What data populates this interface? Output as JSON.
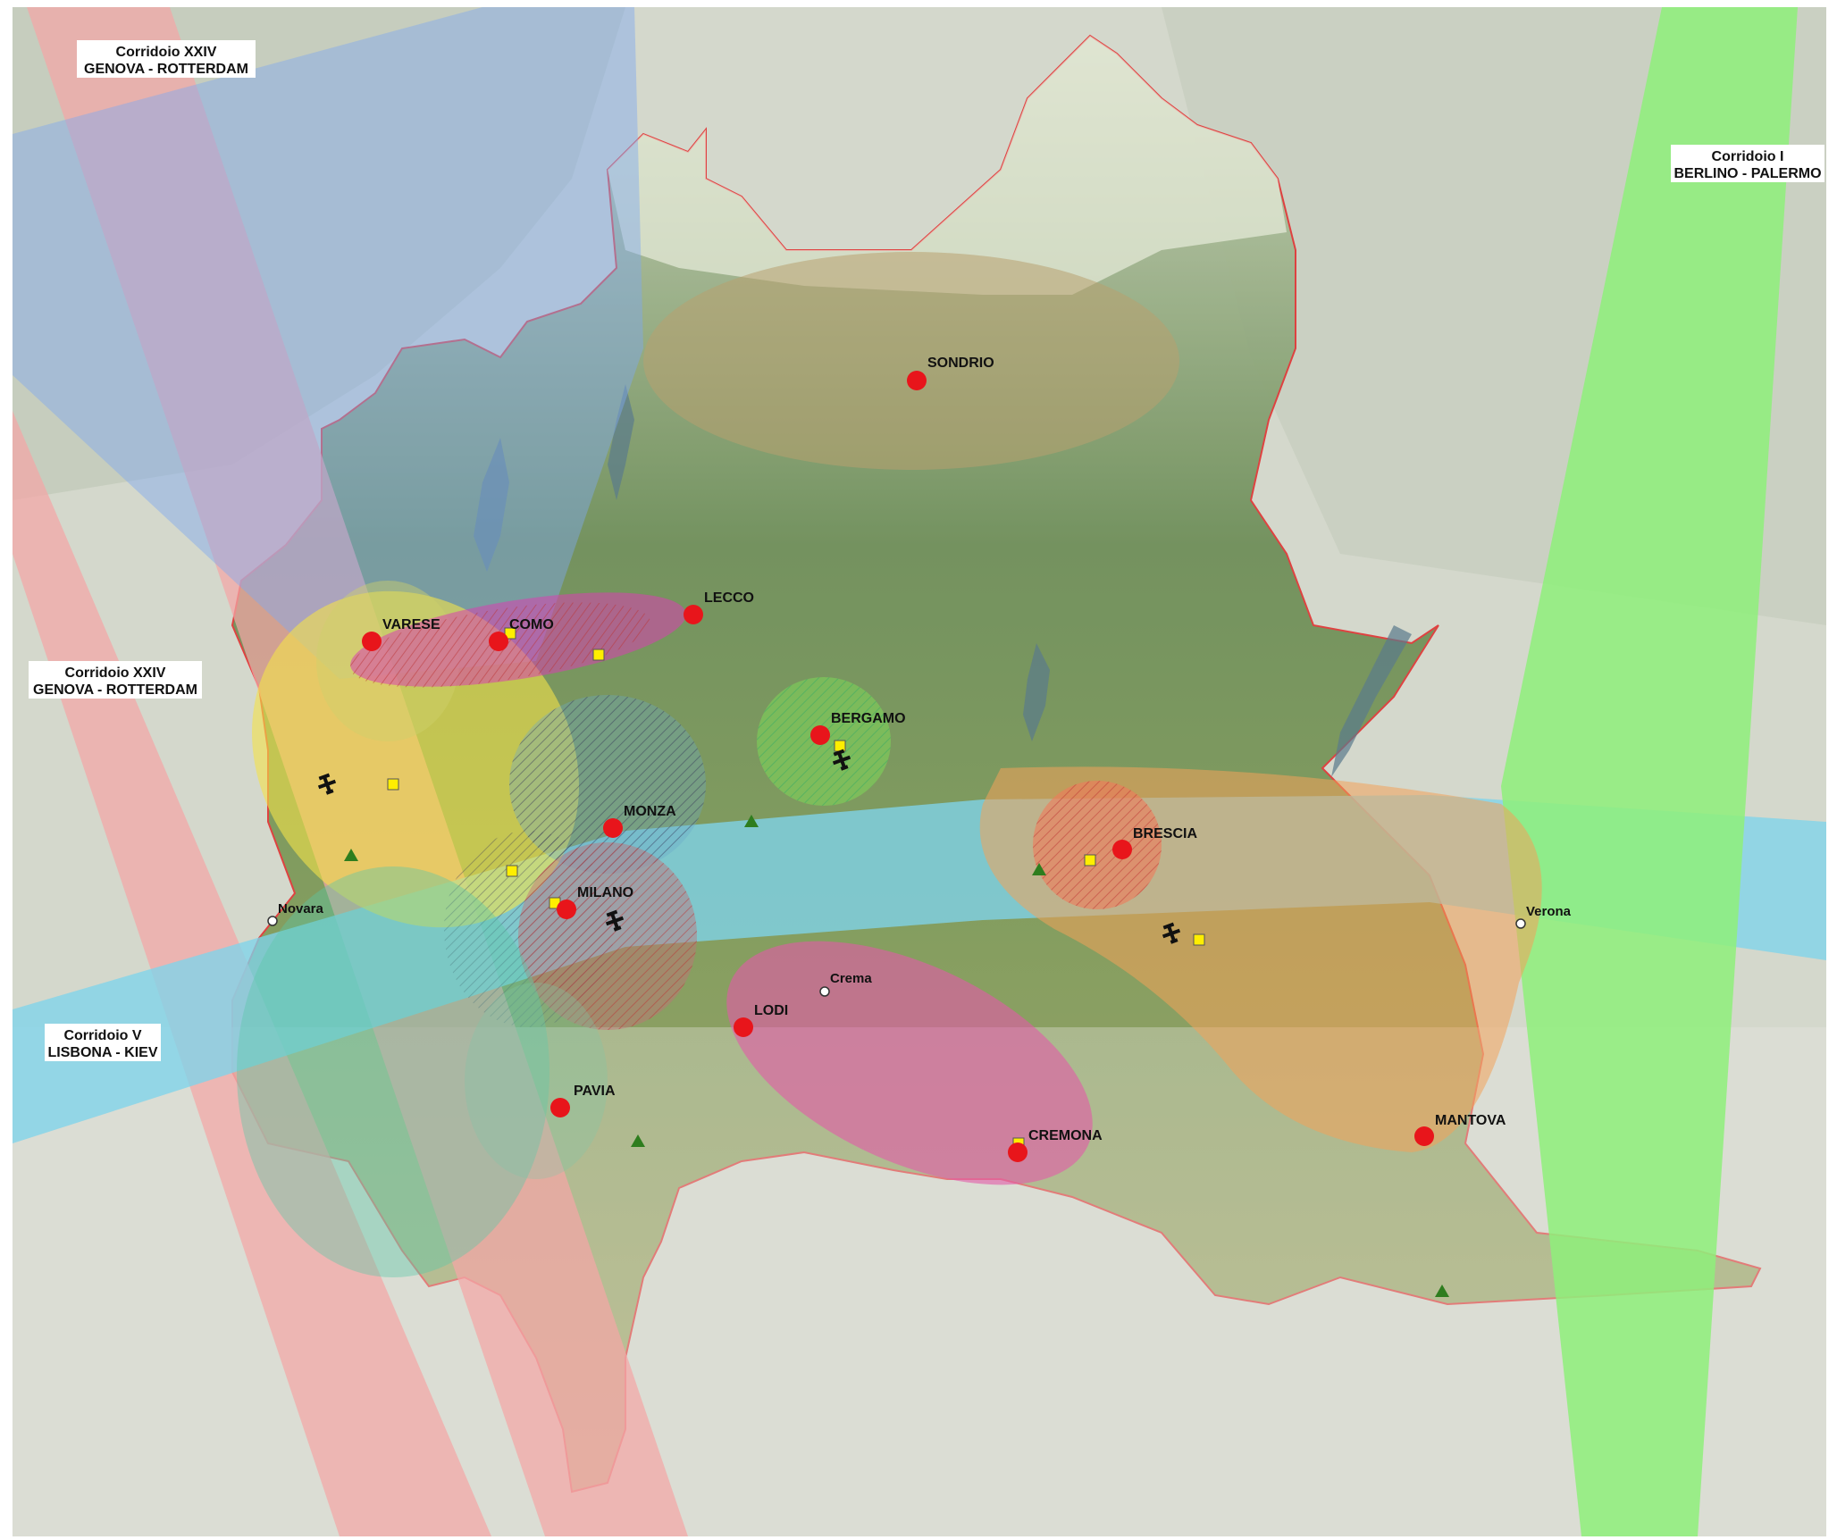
{
  "corridors": [
    {
      "line1": "Corridoio XXIV",
      "line2": "GENOVA - ROTTERDAM",
      "color": "#f4a6a6"
    },
    {
      "line1": "Corridoio XXIV",
      "line2": "GENOVA - ROTTERDAM",
      "color": "#f4a6a6"
    },
    {
      "line1": "Corridoio V",
      "line2": "LISBONA - KIEV",
      "color": "#7fd3ea"
    },
    {
      "line1": "Corridoio I",
      "line2": "BERLINO - PALERMO",
      "color": "#8ef07a"
    }
  ],
  "provincial_capitals": [
    "SONDRIO",
    "VARESE",
    "COMO",
    "LECCO",
    "BERGAMO",
    "MONZA",
    "MILANO",
    "BRESCIA",
    "LODI",
    "PAVIA",
    "CREMONA",
    "MANTOVA"
  ],
  "towns": [
    "Novara",
    "Crema",
    "Verona"
  ],
  "colors": {
    "capital_marker": "#e8151b",
    "logistics_marker": "#ffee00",
    "green_marker": "#2e7d1e",
    "region_border": "#e03a3a",
    "blue_corridor": "#7fa8f0",
    "sondrio_zone": "#b8a070",
    "varese_zone": "#f3e24a",
    "como_lecco_zone": "#d93fb0",
    "bergamo_zone": "#7ed957",
    "milano_zone": "#c0707a",
    "brescia_zone": "#f07a5a",
    "east_zone": "#f2a25a",
    "lodi_cremona_zone": "#e35aa8",
    "west_zone": "#5ac8a8"
  },
  "icons": [
    "airport-icon",
    "logistics-square-icon",
    "green-triangle-icon",
    "capital-dot-icon",
    "town-dot-icon"
  ]
}
